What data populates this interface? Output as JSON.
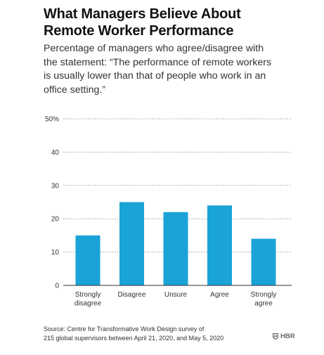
{
  "title_lines": [
    "What Managers Believe About",
    "Remote Worker Performance"
  ],
  "subtitle_lines": [
    "Percentage of managers who agree/disagree with",
    "the statement: “The performance of remote workers",
    "is usually lower than that of people who work in an",
    "office setting.”"
  ],
  "source_lines": [
    "Source: Centre for Transformative Work Design survey of",
    "215 global supervisors between April 21, 2020, and May 5, 2020"
  ],
  "brand": "HBR",
  "colors": {
    "bar": "#1aa3d6",
    "grid": "#9a9a9a",
    "axis": "#333333",
    "text": "#333333"
  },
  "chart_data": {
    "type": "bar",
    "categories": [
      [
        "Strongly",
        "disagree"
      ],
      [
        "Disagree"
      ],
      [
        "Unsure"
      ],
      [
        "Agree"
      ],
      [
        "Strongly",
        "agree"
      ]
    ],
    "values": [
      15,
      25,
      22,
      24,
      14
    ],
    "yticks": [
      "0",
      "10",
      "20",
      "30",
      "40",
      "50%"
    ],
    "ylim": [
      0,
      50
    ],
    "grid": true,
    "xlabel": "",
    "ylabel": ""
  }
}
